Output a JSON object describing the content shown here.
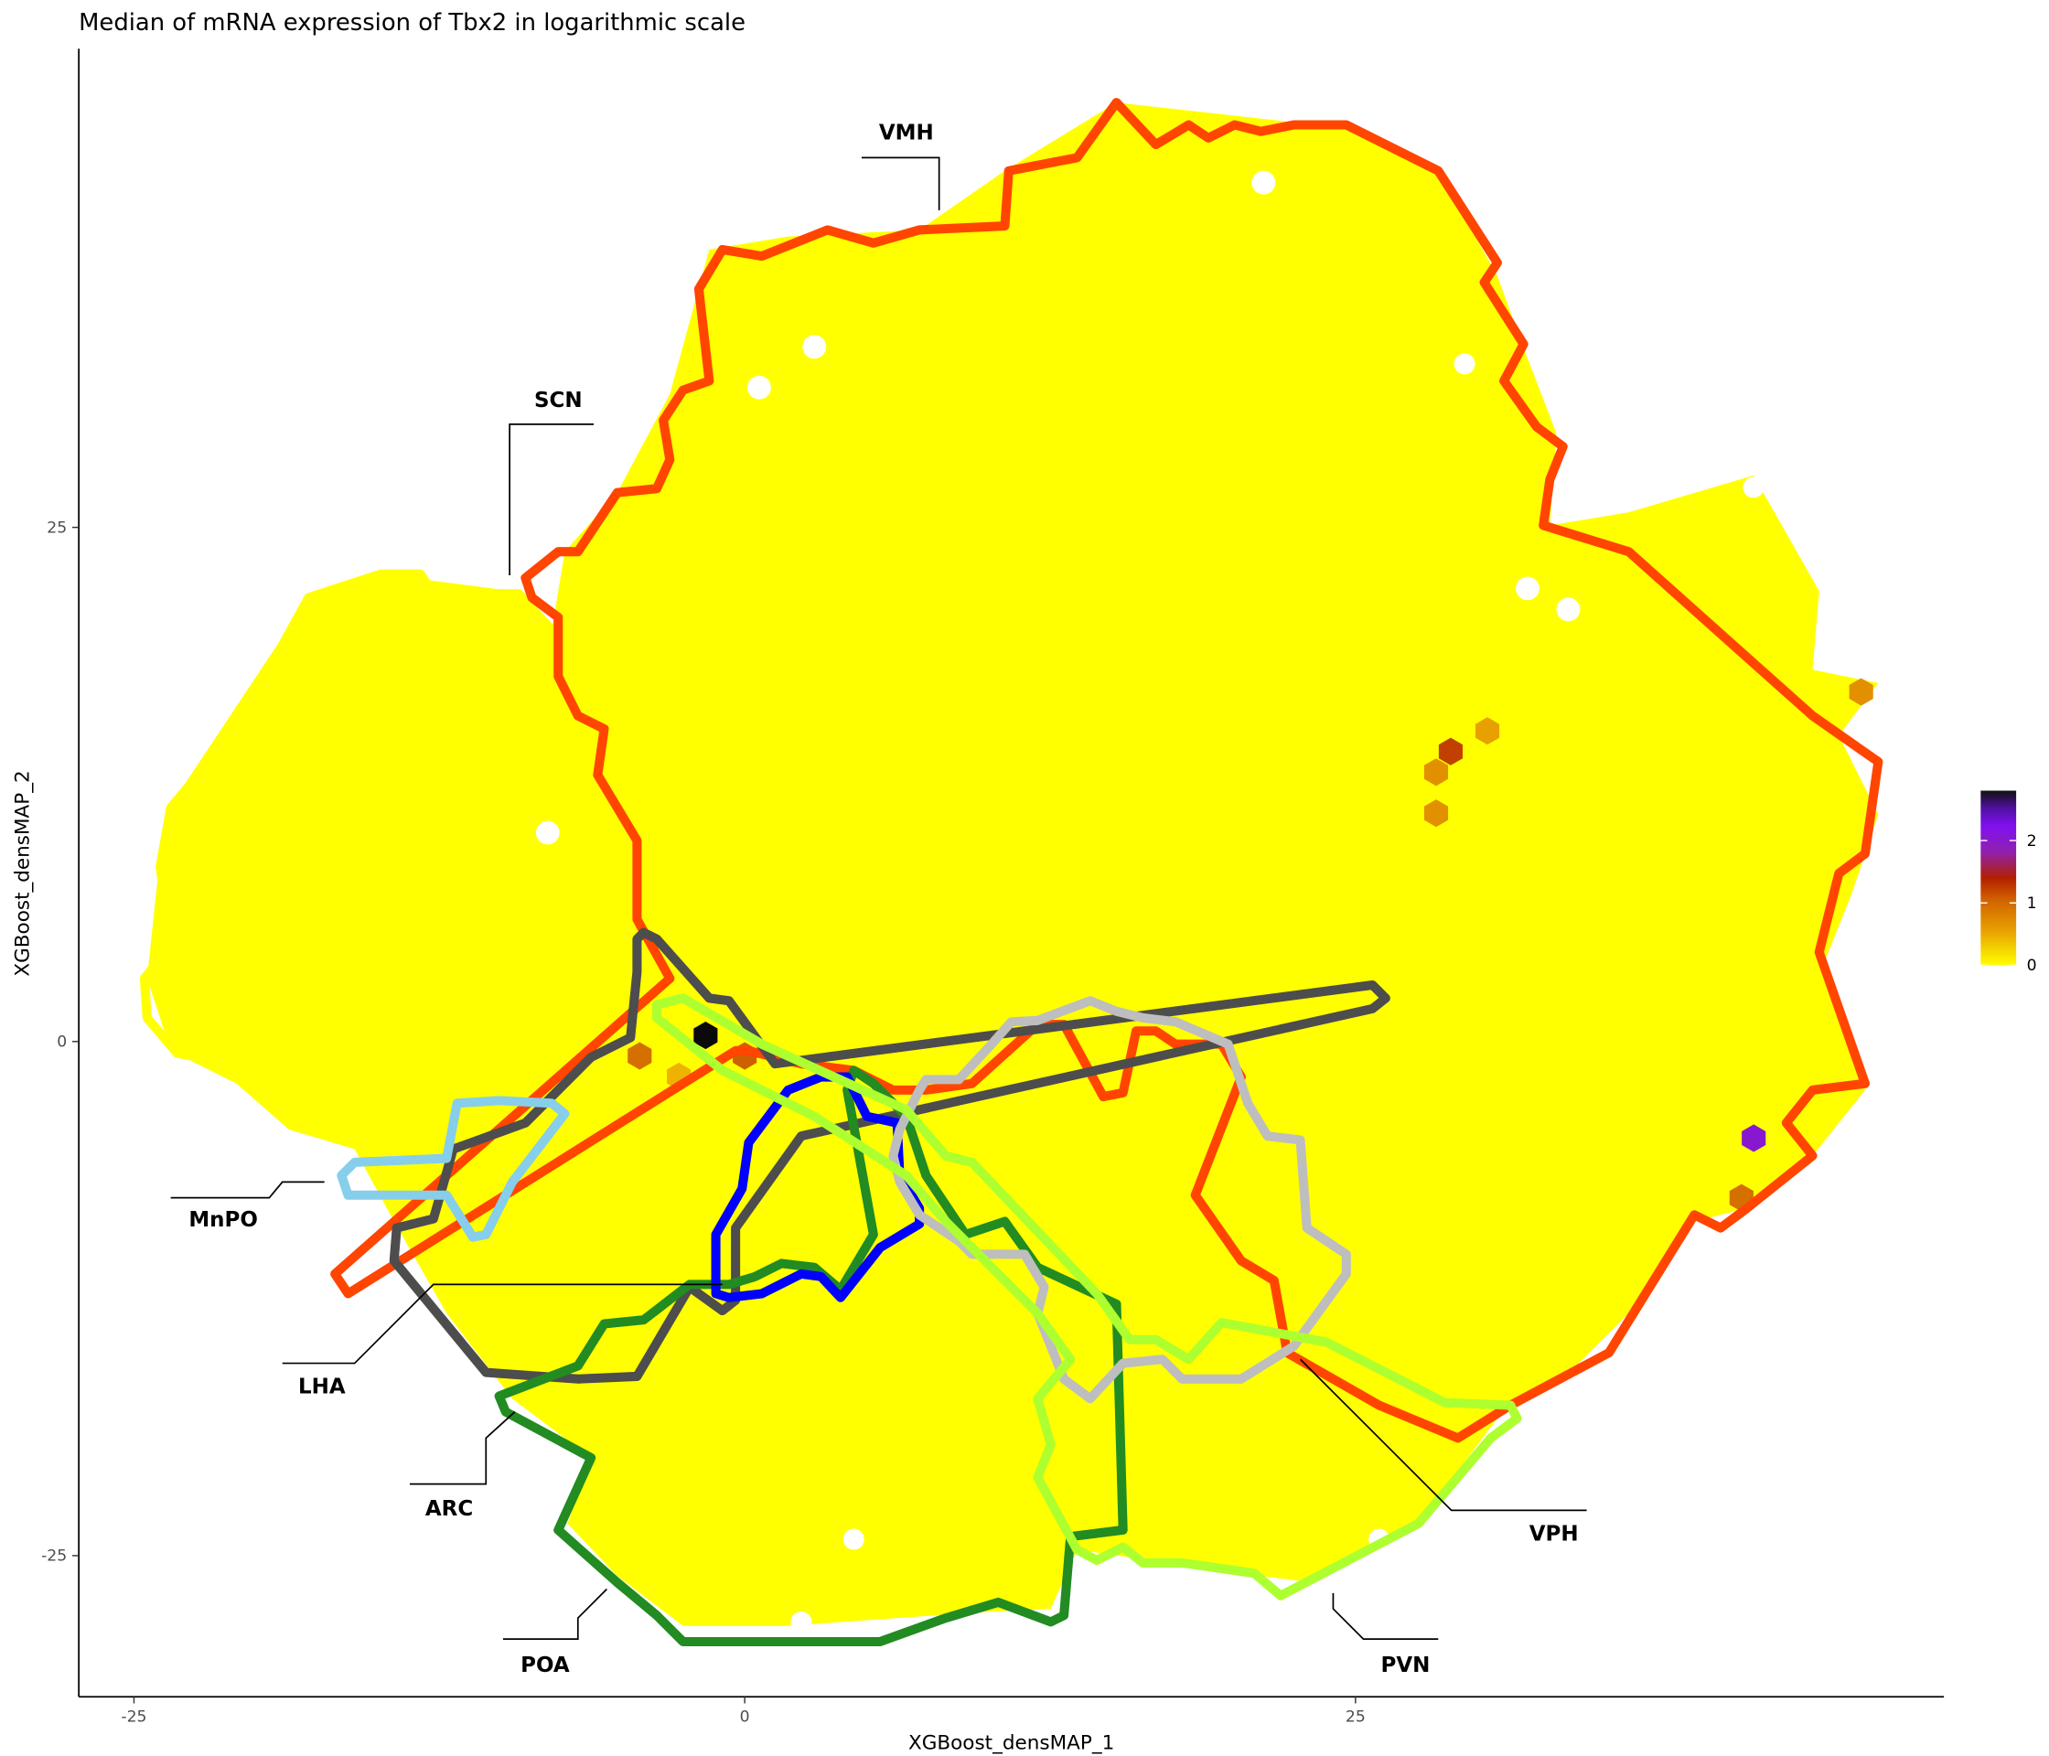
{
  "chart_data": {
    "type": "hexbin",
    "title": "Median of mRNA expression of Tbx2 in logarithmic scale",
    "xlabel": "XGBoost_densMAP_1",
    "ylabel": "XGBoost_densMAP_2",
    "x_ticks": [
      -25,
      0,
      25
    ],
    "y_ticks": [
      -25,
      0,
      25
    ],
    "xlim": [
      -27,
      49
    ],
    "ylim": [
      -32,
      48
    ],
    "grid": false,
    "background_value": 0,
    "nonzero_bins": [
      {
        "x": 28.9,
        "y": 14.1,
        "value": 1.1
      },
      {
        "x": 28.3,
        "y": 13.1,
        "value": 0.6
      },
      {
        "x": 30.4,
        "y": 15.1,
        "value": 0.5
      },
      {
        "x": 28.3,
        "y": 11.1,
        "value": 0.6
      },
      {
        "x": 45.7,
        "y": 17.0,
        "value": 0.6
      },
      {
        "x": 41.3,
        "y": -4.7,
        "value": 2.0
      },
      {
        "x": 40.8,
        "y": -7.6,
        "value": 0.8
      },
      {
        "x": -1.6,
        "y": 0.3,
        "value": 2.8
      },
      {
        "x": -4.3,
        "y": -0.7,
        "value": 0.8
      },
      {
        "x": 0.0,
        "y": -0.7,
        "value": 0.9
      },
      {
        "x": -2.7,
        "y": -1.7,
        "value": 0.4
      }
    ],
    "colorbar": {
      "ticks": [
        0,
        1,
        2
      ],
      "range": [
        0,
        2.8
      ],
      "colors": [
        "#ffff00",
        "#e08000",
        "#b22000",
        "#8a10e0",
        "#000000"
      ]
    },
    "regions": [
      {
        "name": "VMH",
        "color": "#ff4500"
      },
      {
        "name": "SCN",
        "color": "#ffff00"
      },
      {
        "name": "MnPO",
        "color": "#87ceeb"
      },
      {
        "name": "LHA",
        "color": "#4d4d4d"
      },
      {
        "name": "ARC",
        "color": "#228b22"
      },
      {
        "name": "POA",
        "color": "#228b22"
      },
      {
        "name": "PVN",
        "color": "#adff2f"
      },
      {
        "name": "VPH",
        "color": "#bebebe"
      },
      {
        "name": "",
        "color": "#0000ff"
      }
    ]
  }
}
